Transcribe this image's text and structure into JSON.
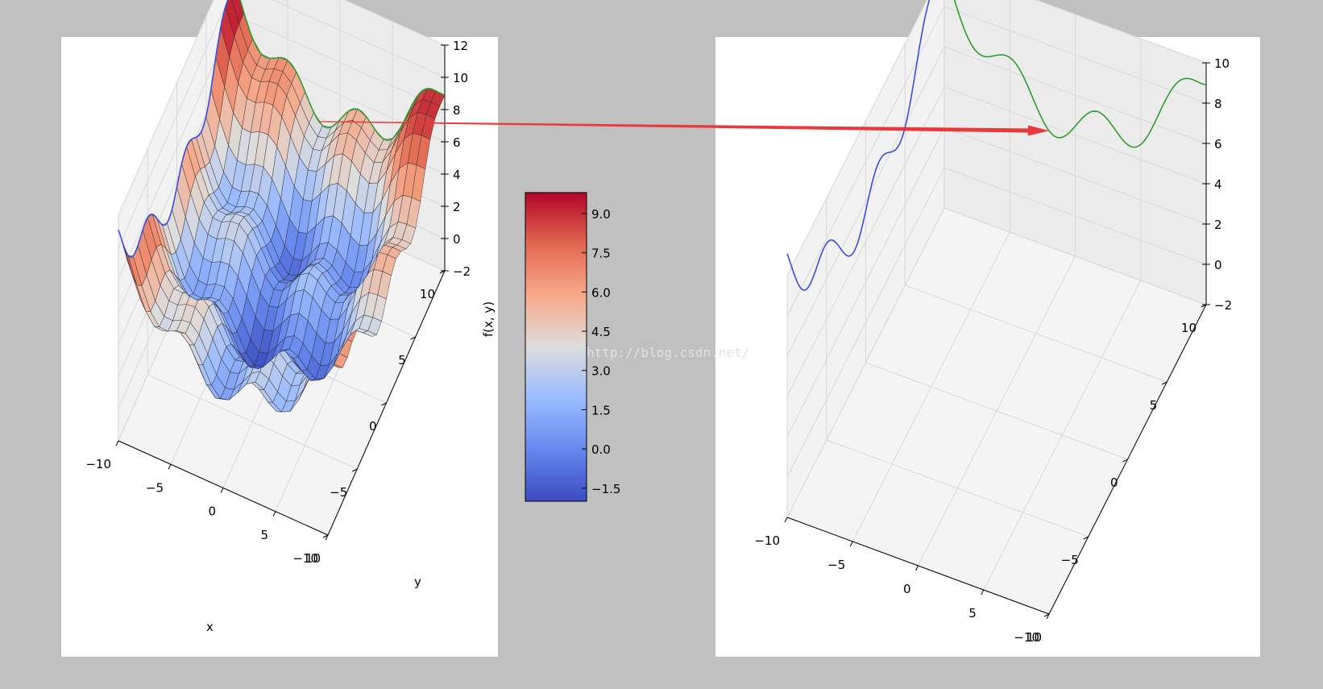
{
  "colors": {
    "background": "#c0c0c0",
    "panel": "#ffffff",
    "pane": "#ececec",
    "grid": "#dcdcdc",
    "line_blue": "#3a4ee0",
    "line_green": "#2e9e2e",
    "arrow": "#e83a3a",
    "cmap_low": "#3b4cc0",
    "cmap_mid": "#dddddd",
    "cmap_high": "#b40426"
  },
  "watermark": "http://blog.csdn.net/",
  "chart_data": [
    {
      "type": "surface",
      "xlabel": "x",
      "ylabel": "y",
      "zlabel": "f(x, y)",
      "xlim": [
        -10,
        10
      ],
      "ylim": [
        -10,
        10
      ],
      "zlim": [
        -2,
        12
      ],
      "xticks": [
        "−10",
        "−5",
        "0",
        "5",
        "10"
      ],
      "yticks": [
        "−10",
        "−5",
        "0",
        "5",
        "10"
      ],
      "zticks": [
        "−2",
        "0",
        "2",
        "4",
        "6",
        "8",
        "10",
        "12"
      ],
      "function": "sin(x) + sin(y) + 0.05*(x^2 + y^2)",
      "grid": true,
      "colormap": "coolwarm",
      "colorbar": {
        "ticks": [
          "−1.5",
          "0.0",
          "1.5",
          "3.0",
          "4.5",
          "6.0",
          "7.5",
          "9.0"
        ],
        "values": [
          -1.5,
          0.0,
          1.5,
          3.0,
          4.5,
          6.0,
          7.5,
          9.0
        ],
        "range": [
          -2.0,
          9.8
        ]
      },
      "curves": [
        {
          "color": "blue",
          "at": "x = -10",
          "y_range": [
            -10,
            10
          ]
        },
        {
          "color": "green",
          "at": "y = 10",
          "x_range": [
            -10,
            10
          ]
        }
      ]
    },
    {
      "type": "line3d",
      "xlim": [
        -10,
        10
      ],
      "ylim": [
        -10,
        10
      ],
      "zlim": [
        -2,
        10
      ],
      "xticks": [
        "−10",
        "−5",
        "0",
        "5",
        "10"
      ],
      "yticks": [
        "−10",
        "−5",
        "0",
        "5",
        "10"
      ],
      "zticks": [
        "−2",
        "0",
        "2",
        "4",
        "6",
        "8",
        "10"
      ],
      "grid": true,
      "series": [
        {
          "color": "blue",
          "at": "x = -10",
          "y_range": [
            -10,
            10
          ]
        },
        {
          "color": "green",
          "at": "y = 10",
          "x_range": [
            -10,
            10
          ]
        }
      ]
    }
  ]
}
